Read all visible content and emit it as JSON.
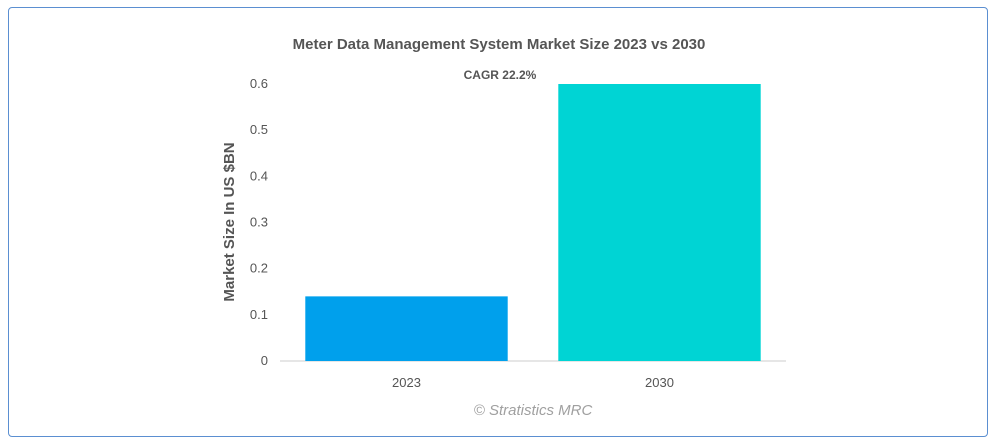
{
  "chart_data": {
    "type": "bar",
    "title": "Meter Data Management System Market Size 2023 vs 2030",
    "xlabel": "",
    "ylabel": "Market Size In US $BN",
    "categories": [
      "2023",
      "2030"
    ],
    "values": [
      0.14,
      0.6
    ],
    "colors": [
      "#00a0ec",
      "#00d4d4"
    ],
    "ylim": [
      0,
      0.6
    ],
    "yticks": [
      "0",
      "0.1",
      "0.2",
      "0.3",
      "0.4",
      "0.5",
      "0.6"
    ],
    "grid": false,
    "legend": "none",
    "annotation": "CAGR 22.2%",
    "watermark": "© Stratistics MRC"
  }
}
